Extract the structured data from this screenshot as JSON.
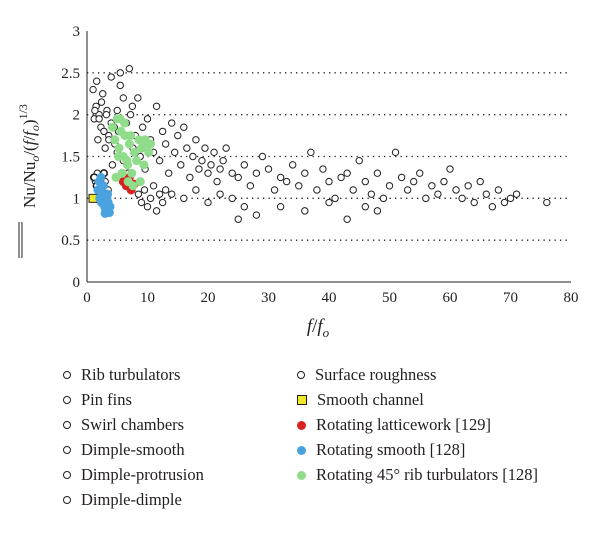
{
  "chart_data": {
    "type": "scatter",
    "xlim": [
      0,
      80
    ],
    "ylim": [
      0,
      3
    ],
    "x_ticks": [
      "0",
      "10",
      "20",
      "30",
      "40",
      "50",
      "60",
      "70",
      "80"
    ],
    "y_ticks": [
      "0",
      "0.5",
      "1",
      "1.5",
      "2",
      "2.5",
      "3"
    ],
    "grid": "dotted horizontal lines at 0.5, 1, 1.5, 2, 2.5",
    "legend_position": "bottom",
    "series": [
      {
        "name": "Rib turbulators",
        "marker": "open-circle",
        "color": "#231f20",
        "x": [
          1.2,
          1.5,
          1.8,
          2.0,
          2.3,
          2.6,
          3.0,
          3.3,
          3.6,
          4.0,
          4.2,
          4.6,
          5.0,
          5.2,
          5.5,
          6.0,
          6.3,
          6.8,
          7.2,
          7.6,
          8.0,
          8.4,
          8.8,
          9.2,
          9.6,
          10.0,
          10.5,
          11.0,
          11.5,
          12.0,
          12.5,
          13.0,
          13.5,
          14.0,
          14.5,
          15.0,
          15.5,
          16.0,
          16.5,
          17.0,
          17.5,
          18.0,
          18.5,
          19.0,
          19.5,
          20.0,
          20.5,
          21.0,
          21.5,
          22.0,
          22.5,
          23.0,
          24.0,
          25.0,
          26.0,
          27.0,
          28.0,
          29.0,
          30.0,
          31.0,
          32.0,
          33.0,
          34.0,
          35.0,
          36.0,
          37.0,
          38.0,
          39.0,
          40.0,
          41.0,
          42.0,
          43.0,
          44.0,
          45.0,
          46.0,
          47.0,
          48.0,
          49.0,
          50.0,
          51.0,
          52.0,
          53.0,
          54.0,
          55.0,
          56.0,
          57.0,
          58.0,
          59.0,
          60.0,
          61.0,
          62.0,
          63.0,
          64.0,
          65.0,
          66.0,
          67.0,
          68.0,
          69.0,
          70.0,
          71.0,
          76.0
        ],
        "y": [
          1.95,
          2.1,
          1.7,
          2.0,
          1.85,
          2.25,
          1.6,
          2.05,
          1.75,
          1.9,
          1.4,
          1.65,
          1.55,
          1.8,
          2.35,
          1.45,
          1.9,
          1.3,
          2.0,
          1.6,
          1.75,
          2.2,
          1.5,
          1.85,
          1.35,
          1.95,
          1.7,
          1.55,
          2.1,
          1.45,
          1.8,
          1.65,
          1.3,
          1.9,
          1.55,
          1.75,
          1.4,
          1.85,
          1.6,
          1.25,
          1.5,
          1.7,
          1.35,
          1.45,
          1.6,
          1.3,
          1.4,
          1.55,
          1.2,
          1.35,
          1.45,
          1.6,
          1.3,
          1.25,
          1.4,
          1.15,
          1.3,
          1.5,
          1.35,
          1.1,
          1.25,
          1.2,
          1.4,
          1.15,
          1.3,
          1.55,
          1.1,
          1.35,
          1.2,
          1.0,
          1.25,
          1.3,
          1.1,
          1.45,
          1.2,
          1.05,
          1.3,
          1.0,
          1.15,
          1.55,
          1.25,
          1.1,
          1.2,
          1.3,
          1.0,
          1.15,
          1.05,
          1.2,
          1.35,
          1.1,
          1.0,
          1.15,
          0.95,
          1.2,
          1.05,
          0.9,
          1.1,
          0.95,
          1.0,
          1.05,
          0.95
        ]
      },
      {
        "name": "Pin fins",
        "marker": "open-circle",
        "color": "#231f20",
        "x": [
          1.0,
          1.3,
          1.6,
          2.0,
          2.4,
          2.8,
          3.2,
          3.6,
          4.0,
          4.5,
          5.0,
          5.5,
          6.0,
          6.5,
          7.0,
          7.5
        ],
        "y": [
          2.3,
          2.05,
          2.4,
          1.95,
          2.15,
          1.8,
          2.0,
          1.7,
          2.45,
          1.85,
          2.05,
          2.5,
          2.2,
          1.9,
          2.55,
          2.1
        ]
      },
      {
        "name": "Swirl chambers",
        "marker": "open-circle",
        "color": "#231f20",
        "x": [
          1.1,
          1.4,
          1.7,
          2.1,
          2.5,
          3.0,
          3.5
        ],
        "y": [
          1.25,
          1.2,
          1.3,
          1.15,
          1.25,
          1.2,
          1.1
        ]
      },
      {
        "name": "Dimple-smooth",
        "marker": "open-circle",
        "color": "#231f20",
        "x": [
          8.5,
          9.0,
          9.5,
          10.0,
          10.5,
          11.0,
          11.5,
          12.0,
          12.5,
          13.0
        ],
        "y": [
          1.05,
          0.95,
          1.1,
          0.9,
          1.0,
          1.15,
          0.85,
          1.05,
          0.95,
          1.1
        ]
      },
      {
        "name": "Dimple-protrusion",
        "marker": "open-circle",
        "color": "#231f20",
        "x": [
          25.0,
          28.0,
          32.0,
          36.0,
          40.0,
          43.0,
          46.0,
          48.0
        ],
        "y": [
          0.75,
          0.8,
          0.9,
          0.85,
          0.95,
          0.75,
          0.9,
          0.85
        ]
      },
      {
        "name": "Dimple-dimple",
        "marker": "open-circle",
        "color": "#231f20",
        "x": [
          14.0,
          16.0,
          18.0,
          20.0,
          22.0,
          24.0,
          26.0
        ],
        "y": [
          1.05,
          1.0,
          1.1,
          0.95,
          1.05,
          1.0,
          0.9
        ]
      },
      {
        "name": "Surface roughness",
        "marker": "open-circle-bold",
        "color": "#231f20",
        "x": [
          1.2,
          1.6,
          2.2,
          2.8
        ],
        "y": [
          1.25,
          1.15,
          1.2,
          1.3
        ]
      },
      {
        "name": "Smooth channel",
        "marker": "square",
        "color": "#f2e82a",
        "x": [
          1.0
        ],
        "y": [
          1.0
        ]
      },
      {
        "name": "Rotating latticework [129]",
        "marker": "filled-circle",
        "color": "#d8221f",
        "x": [
          6.0,
          6.5,
          7.0,
          7.3,
          7.8
        ],
        "y": [
          1.2,
          1.15,
          1.25,
          1.1,
          1.17
        ]
      },
      {
        "name": "Rotating smooth [128]",
        "marker": "filled-circle",
        "color": "#4aa3df",
        "x": [
          1.8,
          2.1,
          2.4,
          2.6,
          2.9,
          3.1,
          3.3,
          3.5,
          3.7,
          2.0,
          2.7,
          3.4,
          3.0,
          3.8,
          2.3
        ],
        "y": [
          1.1,
          1.0,
          0.95,
          1.05,
          0.9,
          0.85,
          1.0,
          0.95,
          0.83,
          1.2,
          1.15,
          1.05,
          0.82,
          0.9,
          1.25
        ]
      },
      {
        "name": "Rotating 45° rib turbulators [128]",
        "marker": "filled-circle",
        "color": "#8fdc8a",
        "x": [
          4.2,
          4.6,
          5.0,
          5.3,
          5.6,
          6.0,
          6.3,
          6.7,
          7.0,
          7.4,
          7.8,
          8.2,
          8.6,
          9.0,
          9.4,
          9.8,
          10.2,
          4.8,
          5.8,
          6.8,
          7.6,
          8.8,
          5.2,
          6.2,
          7.2,
          9.6,
          10.5,
          5.5,
          6.6
        ],
        "y": [
          1.85,
          1.7,
          1.95,
          1.6,
          1.8,
          1.5,
          1.75,
          1.4,
          1.65,
          1.3,
          1.55,
          1.45,
          1.7,
          1.6,
          1.4,
          1.65,
          1.55,
          1.25,
          1.3,
          1.2,
          1.15,
          1.2,
          1.5,
          1.9,
          1.75,
          1.7,
          1.65,
          1.95,
          1.45
        ]
      }
    ]
  }
}
